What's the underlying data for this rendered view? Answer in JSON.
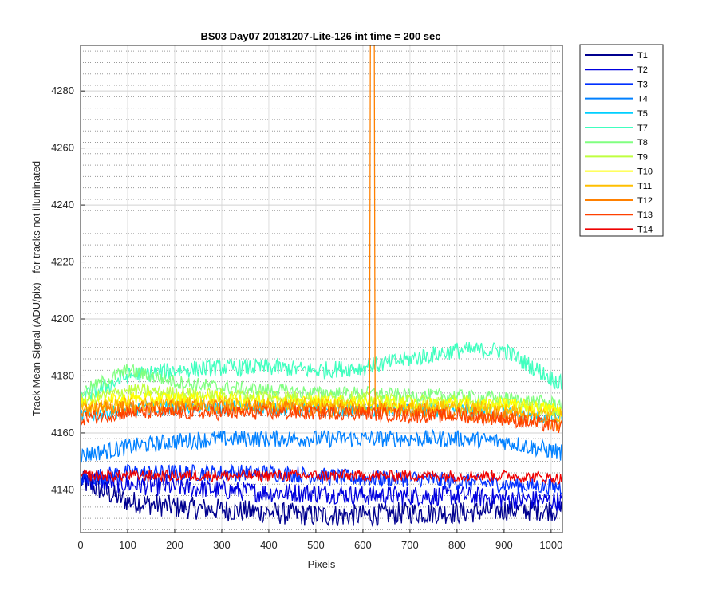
{
  "chart_data": {
    "type": "line",
    "title": "BS03 Day07 20181207-Lite-126 int time = 200 sec",
    "xlabel": "Pixels",
    "ylabel": "Track Mean Signal (ADU/pix) - for tracks not illuminated",
    "xlim": [
      0,
      1024
    ],
    "ylim": [
      4125,
      4296
    ],
    "x_ticks": [
      "0",
      "100",
      "200",
      "300",
      "400",
      "500",
      "600",
      "700",
      "800",
      "900",
      "1000"
    ],
    "y_ticks": [
      "4140",
      "4160",
      "4180",
      "4200",
      "4220",
      "4240",
      "4260",
      "4280"
    ],
    "grid": "major solid + minor dotted",
    "legend_position": "outside top-right",
    "series": [
      {
        "name": "T1",
        "color": "#00008f",
        "x": [
          0,
          100,
          200,
          300,
          400,
          500,
          600,
          700,
          800,
          900,
          1024
        ],
        "y": [
          4143,
          4136,
          4134,
          4133,
          4132,
          4131,
          4131,
          4132,
          4132,
          4133,
          4133
        ],
        "noise": 4
      },
      {
        "name": "T2",
        "color": "#0000df",
        "x": [
          0,
          100,
          200,
          300,
          400,
          500,
          600,
          700,
          800,
          900,
          1024
        ],
        "y": [
          4144,
          4142,
          4141,
          4140,
          4139,
          4139,
          4138,
          4138,
          4138,
          4137,
          4136
        ],
        "noise": 3.5
      },
      {
        "name": "T3",
        "color": "#0030ff",
        "x": [
          0,
          100,
          200,
          300,
          400,
          500,
          600,
          700,
          800,
          900,
          1024
        ],
        "y": [
          4144,
          4146,
          4146,
          4146,
          4146,
          4145,
          4144,
          4144,
          4143,
          4142,
          4141
        ],
        "noise": 3
      },
      {
        "name": "T4",
        "color": "#0080ff",
        "x": [
          0,
          100,
          200,
          300,
          400,
          500,
          600,
          700,
          800,
          900,
          1024
        ],
        "y": [
          4152,
          4155,
          4157,
          4158,
          4158,
          4158,
          4158,
          4158,
          4158,
          4157,
          4153
        ],
        "noise": 3
      },
      {
        "name": "T5",
        "color": "#00cfff",
        "x": [
          0,
          100,
          200,
          300,
          400,
          500,
          600,
          700,
          800,
          900,
          1024
        ],
        "y": [
          4166,
          4168,
          4169,
          4169,
          4169,
          4168,
          4168,
          4168,
          4168,
          4167,
          4165
        ],
        "noise": 2.5
      },
      {
        "name": "T7",
        "color": "#40ffbf",
        "x": [
          0,
          100,
          200,
          300,
          400,
          500,
          600,
          700,
          800,
          900,
          1024
        ],
        "y": [
          4172,
          4180,
          4182,
          4183,
          4183,
          4182,
          4183,
          4186,
          4189,
          4189,
          4177
        ],
        "noise": 3
      },
      {
        "name": "T8",
        "color": "#80ff80",
        "x": [
          0,
          100,
          200,
          300,
          400,
          500,
          600,
          700,
          800,
          900,
          1024
        ],
        "y": [
          4174,
          4182,
          4178,
          4176,
          4175,
          4174,
          4174,
          4173,
          4173,
          4172,
          4170
        ],
        "noise": 2.5
      },
      {
        "name": "T9",
        "color": "#bfff40",
        "x": [
          0,
          100,
          200,
          300,
          400,
          500,
          600,
          700,
          800,
          900,
          1024
        ],
        "y": [
          4171,
          4175,
          4174,
          4173,
          4173,
          4172,
          4172,
          4171,
          4171,
          4170,
          4168
        ],
        "noise": 2.5
      },
      {
        "name": "T10",
        "color": "#ffff00",
        "x": [
          0,
          100,
          200,
          300,
          400,
          500,
          600,
          700,
          800,
          900,
          1024
        ],
        "y": [
          4170,
          4172,
          4172,
          4172,
          4171,
          4171,
          4171,
          4170,
          4170,
          4170,
          4168
        ],
        "noise": 2.5
      },
      {
        "name": "T11",
        "color": "#ffbf00",
        "x": [
          0,
          100,
          200,
          300,
          400,
          500,
          600,
          700,
          800,
          900,
          1024
        ],
        "y": [
          4169,
          4170,
          4170,
          4170,
          4170,
          4170,
          4169,
          4169,
          4169,
          4168,
          4166
        ],
        "noise": 2.5
      },
      {
        "name": "T12",
        "color": "#ff8000",
        "x": [
          0,
          100,
          200,
          300,
          400,
          500,
          600,
          620,
          700,
          800,
          900,
          1024
        ],
        "y": [
          4168,
          4169,
          4169,
          4169,
          4169,
          4168,
          4168,
          4296,
          4168,
          4167,
          4166,
          4163
        ],
        "noise": 2.5
      },
      {
        "name": "T13",
        "color": "#ff4000",
        "x": [
          0,
          100,
          200,
          300,
          400,
          500,
          600,
          700,
          800,
          900,
          1024
        ],
        "y": [
          4165,
          4167,
          4167,
          4167,
          4167,
          4167,
          4167,
          4166,
          4166,
          4165,
          4162
        ],
        "noise": 2.5
      },
      {
        "name": "T14",
        "color": "#ef0000",
        "x": [
          0,
          100,
          200,
          300,
          400,
          500,
          600,
          700,
          800,
          900,
          1024
        ],
        "y": [
          4145,
          4145,
          4145,
          4145,
          4145,
          4145,
          4145,
          4145,
          4145,
          4145,
          4144
        ],
        "noise": 2
      }
    ]
  }
}
